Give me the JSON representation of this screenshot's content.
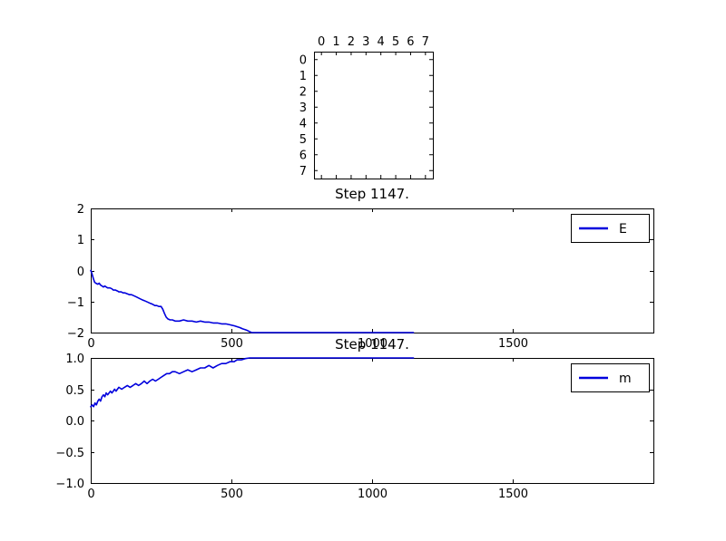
{
  "figure": {
    "background": "#ffffff",
    "line_color": "#0000dd",
    "axis_color": "#000000",
    "step_label": "Step 1147."
  },
  "chart_data": [
    {
      "type": "heatmap",
      "name": "spin-lattice",
      "x_tick_labels": [
        "0",
        "1",
        "2",
        "3",
        "4",
        "5",
        "6",
        "7"
      ],
      "y_tick_labels": [
        "0",
        "1",
        "2",
        "3",
        "4",
        "5",
        "6",
        "7"
      ],
      "values": [
        [
          1,
          1,
          1,
          1,
          1,
          1,
          1,
          1
        ],
        [
          1,
          1,
          1,
          1,
          1,
          1,
          1,
          1
        ],
        [
          1,
          1,
          1,
          1,
          1,
          1,
          1,
          1
        ],
        [
          1,
          1,
          1,
          1,
          1,
          1,
          1,
          1
        ],
        [
          1,
          1,
          1,
          1,
          1,
          1,
          1,
          1
        ],
        [
          1,
          1,
          1,
          1,
          1,
          1,
          1,
          1
        ],
        [
          1,
          1,
          1,
          1,
          1,
          1,
          1,
          1
        ],
        [
          1,
          1,
          1,
          1,
          1,
          1,
          1,
          1
        ]
      ],
      "value_colors": {
        "1": "#ffffff"
      }
    },
    {
      "type": "line",
      "name": "energy-vs-step",
      "title": "Step 1147.",
      "xlim": [
        0,
        2000
      ],
      "ylim": [
        -2,
        2
      ],
      "x_ticks": [
        0,
        500,
        1000,
        1500
      ],
      "x_tick_labels": [
        "0",
        "500",
        "1000",
        "1500"
      ],
      "y_ticks": [
        2,
        1,
        0,
        -1,
        -2
      ],
      "y_tick_labels": [
        "2",
        "1",
        "0",
        "−1",
        "−2"
      ],
      "grid": false,
      "legend_position": "upper right",
      "series": [
        {
          "name": "E",
          "x": [
            0,
            3,
            6,
            10,
            14,
            18,
            25,
            30,
            35,
            40,
            45,
            50,
            55,
            60,
            68,
            75,
            80,
            88,
            95,
            100,
            108,
            115,
            122,
            130,
            138,
            145,
            152,
            160,
            168,
            175,
            182,
            190,
            198,
            205,
            212,
            220,
            228,
            235,
            242,
            250,
            256,
            262,
            268,
            274,
            282,
            290,
            300,
            315,
            330,
            345,
            360,
            375,
            390,
            405,
            420,
            435,
            450,
            465,
            480,
            495,
            510,
            520,
            530,
            540,
            550,
            558,
            565,
            572,
            600,
            700,
            850,
            1000,
            1147
          ],
          "y": [
            0,
            -0.06,
            -0.16,
            -0.28,
            -0.38,
            -0.41,
            -0.44,
            -0.41,
            -0.47,
            -0.5,
            -0.53,
            -0.5,
            -0.53,
            -0.56,
            -0.56,
            -0.59,
            -0.63,
            -0.63,
            -0.66,
            -0.69,
            -0.69,
            -0.72,
            -0.72,
            -0.75,
            -0.78,
            -0.78,
            -0.81,
            -0.84,
            -0.88,
            -0.91,
            -0.94,
            -0.97,
            -1.0,
            -1.03,
            -1.06,
            -1.09,
            -1.13,
            -1.13,
            -1.16,
            -1.16,
            -1.25,
            -1.38,
            -1.5,
            -1.56,
            -1.59,
            -1.59,
            -1.63,
            -1.63,
            -1.59,
            -1.63,
            -1.63,
            -1.66,
            -1.63,
            -1.66,
            -1.66,
            -1.69,
            -1.69,
            -1.72,
            -1.72,
            -1.75,
            -1.78,
            -1.81,
            -1.84,
            -1.88,
            -1.91,
            -1.94,
            -1.97,
            -2.0,
            -2.0,
            -2.0,
            -2.0,
            -2.0,
            -2.0
          ]
        }
      ]
    },
    {
      "type": "line",
      "name": "magnetization-vs-step",
      "title": "Step 1147.",
      "xlim": [
        0,
        2000
      ],
      "ylim": [
        -1,
        1
      ],
      "x_ticks": [
        0,
        500,
        1000,
        1500
      ],
      "x_tick_labels": [
        "0",
        "500",
        "1000",
        "1500"
      ],
      "y_ticks": [
        1.0,
        0.5,
        0.0,
        -0.5,
        -1.0
      ],
      "y_tick_labels": [
        "1.0",
        "0.5",
        "0.0",
        "−0.5",
        "−1.0"
      ],
      "grid": false,
      "legend_position": "upper right",
      "series": [
        {
          "name": "m",
          "x": [
            0,
            5,
            10,
            15,
            20,
            25,
            30,
            35,
            40,
            45,
            50,
            55,
            60,
            65,
            70,
            75,
            80,
            85,
            90,
            95,
            100,
            110,
            120,
            130,
            140,
            150,
            160,
            170,
            180,
            190,
            200,
            210,
            220,
            230,
            240,
            250,
            260,
            270,
            280,
            290,
            300,
            315,
            330,
            345,
            360,
            375,
            390,
            405,
            420,
            435,
            450,
            465,
            480,
            495,
            510,
            520,
            535,
            550,
            565,
            600,
            700,
            850,
            1000,
            1147
          ],
          "y": [
            0.22,
            0.25,
            0.22,
            0.28,
            0.25,
            0.31,
            0.34,
            0.31,
            0.38,
            0.41,
            0.38,
            0.44,
            0.41,
            0.44,
            0.47,
            0.44,
            0.47,
            0.5,
            0.47,
            0.5,
            0.53,
            0.5,
            0.53,
            0.56,
            0.53,
            0.56,
            0.59,
            0.56,
            0.59,
            0.63,
            0.59,
            0.63,
            0.66,
            0.63,
            0.66,
            0.69,
            0.72,
            0.75,
            0.75,
            0.78,
            0.78,
            0.75,
            0.78,
            0.81,
            0.78,
            0.81,
            0.84,
            0.84,
            0.88,
            0.84,
            0.88,
            0.91,
            0.91,
            0.94,
            0.94,
            0.97,
            0.97,
            0.99,
            1.0,
            1.0,
            1.0,
            1.0,
            1.0,
            1.0
          ]
        }
      ]
    }
  ]
}
